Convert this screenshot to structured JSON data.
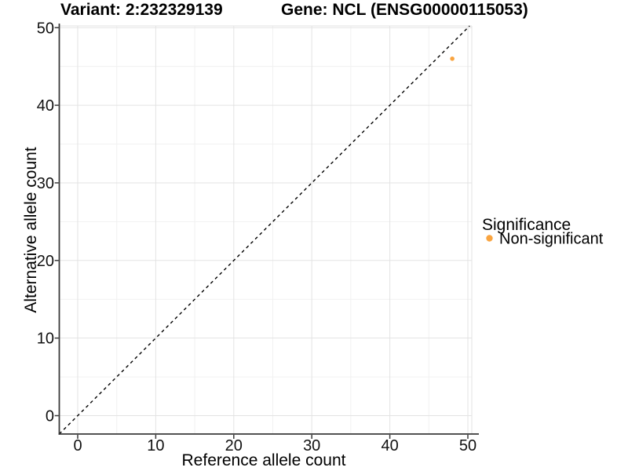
{
  "chart_data": {
    "type": "scatter",
    "title_left": "Variant: 2:232329139",
    "title_right": "Gene: NCL (ENSG00000115053)",
    "xlabel": "Reference allele count",
    "ylabel": "Alternative allele count",
    "x_ticks": [
      0,
      10,
      20,
      30,
      40,
      50
    ],
    "y_ticks": [
      0,
      10,
      20,
      30,
      40,
      50
    ],
    "x_minor_ticks": [
      5,
      15,
      25,
      35,
      45
    ],
    "y_minor_ticks": [
      5,
      15,
      25,
      35,
      45
    ],
    "xlim": [
      0,
      50
    ],
    "ylim": [
      0,
      50
    ],
    "grid": "major and minor gridlines on white panel",
    "reference_line": {
      "type": "identity y=x",
      "style": "dashed",
      "color": "#000000"
    },
    "points": [
      {
        "x": 48,
        "y": 46,
        "series": "Non-significant"
      }
    ],
    "legend": {
      "title": "Significance",
      "position": "right",
      "items": [
        {
          "label": "Non-significant",
          "color": "#F9A440"
        }
      ]
    },
    "colors": {
      "point_orange": "#F9A440",
      "axis_line": "#3a3a3a",
      "tick_text": "#111111",
      "grid_major": "#e3e3e3",
      "grid_minor": "#f1f1f1",
      "background": "#ffffff"
    }
  }
}
